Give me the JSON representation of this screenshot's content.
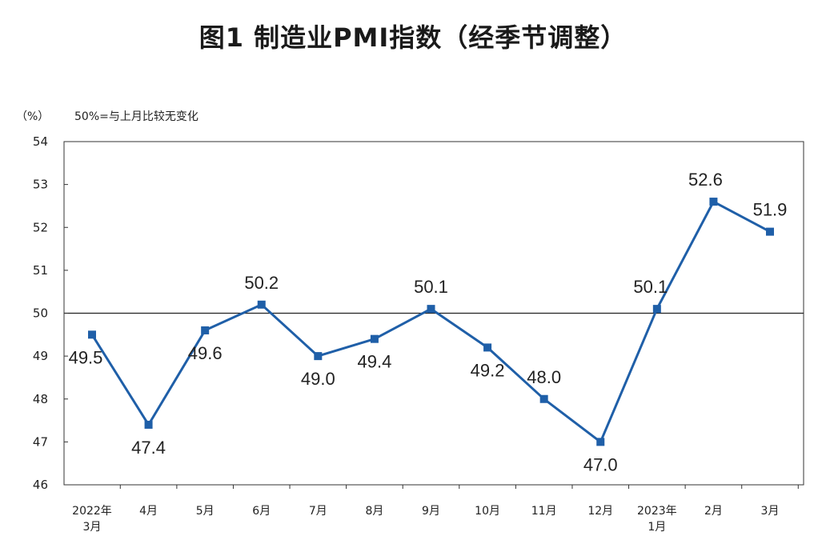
{
  "title": "图1  制造业PMI指数（经季节调整）",
  "chart_data": {
    "type": "line",
    "title": "图1  制造业PMI指数（经季节调整）",
    "unit_label": "（%）",
    "reference_note": "50%=与上月比较无变化",
    "reference_value": 50,
    "ylim": [
      46,
      54
    ],
    "yticks": [
      "46",
      "47",
      "48",
      "49",
      "50",
      "51",
      "52",
      "53",
      "54"
    ],
    "grid": false,
    "categories": [
      [
        "2022年",
        "3月"
      ],
      [
        "4月"
      ],
      [
        "5月"
      ],
      [
        "6月"
      ],
      [
        "7月"
      ],
      [
        "8月"
      ],
      [
        "9月"
      ],
      [
        "10月"
      ],
      [
        "11月"
      ],
      [
        "12月"
      ],
      [
        "2023年",
        "1月"
      ],
      [
        "2月"
      ],
      [
        "3月"
      ]
    ],
    "series": [
      {
        "values": [
          49.5,
          47.4,
          49.6,
          50.2,
          49.0,
          49.4,
          50.1,
          49.2,
          48.0,
          47.0,
          50.1,
          52.6,
          51.9
        ],
        "labels": [
          "49.5",
          "47.4",
          "49.6",
          "50.2",
          "49.0",
          "49.4",
          "50.1",
          "49.2",
          "48.0",
          "47.0",
          "50.1",
          "52.6",
          "51.9"
        ],
        "color": "#1f5fa8"
      }
    ]
  }
}
